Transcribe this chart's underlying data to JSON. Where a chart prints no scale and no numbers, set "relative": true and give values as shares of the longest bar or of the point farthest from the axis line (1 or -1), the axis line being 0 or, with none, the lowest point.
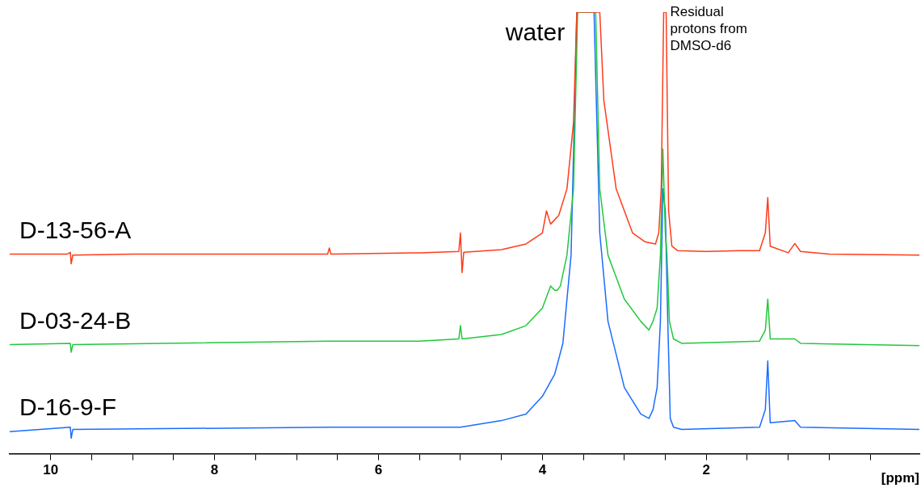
{
  "chart_data": {
    "type": "line",
    "relative": true,
    "xlabel": "[ppm]",
    "xlim": [
      10.5,
      -0.6
    ],
    "xticks": [
      10,
      {
        "value": 9.5,
        "label": null
      },
      {
        "value": 9,
        "label": null
      },
      {
        "value": 8.5,
        "label": null
      },
      8,
      {
        "value": 7.5,
        "label": null
      },
      {
        "value": 7,
        "label": null
      },
      {
        "value": 6.5,
        "label": null
      },
      6,
      {
        "value": 5.5,
        "label": null
      },
      {
        "value": 5,
        "label": null
      },
      {
        "value": 4.5,
        "label": null
      },
      4,
      {
        "value": 3.5,
        "label": null
      },
      {
        "value": 3,
        "label": null
      },
      {
        "value": 2.5,
        "label": null
      },
      2,
      {
        "value": 1.5,
        "label": null
      },
      {
        "value": 1,
        "label": null
      },
      {
        "value": 0.5,
        "label": null
      },
      {
        "value": 0,
        "label": null
      }
    ],
    "grid": false,
    "legend": false,
    "annotations": [
      {
        "text": "water",
        "x": 3.45,
        "y": 1
      },
      {
        "text": "Residual protons from DMSO-d6",
        "x": 2.5,
        "y": 1
      }
    ],
    "series": [
      {
        "name": "D-13-56-A",
        "color": "#ff3b1a",
        "x": [
          10.5,
          9.8,
          9.76,
          9.75,
          9.73,
          9,
          6.62,
          6.6,
          6.58,
          5.5,
          5.02,
          5.0,
          4.98,
          4.96,
          4.5,
          4.2,
          4.0,
          3.95,
          3.9,
          3.8,
          3.7,
          3.62,
          3.58,
          3.3,
          3.25,
          3.1,
          2.9,
          2.75,
          2.62,
          2.58,
          2.55,
          2.52,
          2.49,
          2.46,
          2.42,
          2.35,
          2.0,
          1.6,
          1.35,
          1.28,
          1.25,
          1.22,
          1.0,
          0.92,
          0.85,
          0.5,
          -0.6
        ],
        "values": [
          0.452,
          0.452,
          0.456,
          0.43,
          0.45,
          0.452,
          0.452,
          0.466,
          0.452,
          0.455,
          0.458,
          0.5,
          0.41,
          0.456,
          0.462,
          0.475,
          0.5,
          0.55,
          0.52,
          0.54,
          0.6,
          0.75,
          1,
          1,
          0.8,
          0.6,
          0.5,
          0.48,
          0.475,
          0.5,
          0.6,
          1,
          1,
          0.55,
          0.47,
          0.46,
          0.458,
          0.46,
          0.46,
          0.5,
          0.58,
          0.47,
          0.455,
          0.476,
          0.458,
          0.452,
          0.45
        ]
      },
      {
        "name": "D-03-24-B",
        "color": "#22c83c",
        "x": [
          10.5,
          9.76,
          9.75,
          9.73,
          6.6,
          5.5,
          5.02,
          5.0,
          4.98,
          4.5,
          4.2,
          4.0,
          3.9,
          3.85,
          3.82,
          3.78,
          3.7,
          3.62,
          3.57,
          3.35,
          3.3,
          3.2,
          3.0,
          2.8,
          2.7,
          2.65,
          2.6,
          2.56,
          2.53,
          2.5,
          2.48,
          2.45,
          2.4,
          2.3,
          1.35,
          1.28,
          1.25,
          1.22,
          0.92,
          0.85,
          -0.6
        ],
        "values": [
          0.247,
          0.25,
          0.23,
          0.247,
          0.255,
          0.255,
          0.26,
          0.29,
          0.26,
          0.27,
          0.29,
          0.33,
          0.38,
          0.37,
          0.37,
          0.38,
          0.45,
          0.6,
          1,
          1,
          0.6,
          0.45,
          0.35,
          0.3,
          0.28,
          0.3,
          0.33,
          0.45,
          0.69,
          0.5,
          0.45,
          0.3,
          0.26,
          0.25,
          0.255,
          0.28,
          0.35,
          0.26,
          0.26,
          0.25,
          0.245
        ]
      },
      {
        "name": "D-16-9-F",
        "color": "#1a6cff",
        "x": [
          10.5,
          9.76,
          9.75,
          9.73,
          6.6,
          5.0,
          4.5,
          4.2,
          4.0,
          3.85,
          3.75,
          3.65,
          3.58,
          3.37,
          3.3,
          3.2,
          3.0,
          2.8,
          2.7,
          2.65,
          2.6,
          2.56,
          2.53,
          2.5,
          2.47,
          2.44,
          2.4,
          2.3,
          1.35,
          1.28,
          1.25,
          1.22,
          0.92,
          0.85,
          -0.6
        ],
        "values": [
          0.05,
          0.06,
          0.035,
          0.055,
          0.06,
          0.06,
          0.075,
          0.09,
          0.13,
          0.18,
          0.25,
          0.45,
          1,
          1,
          0.5,
          0.3,
          0.15,
          0.09,
          0.08,
          0.1,
          0.15,
          0.3,
          0.6,
          0.55,
          0.3,
          0.08,
          0.06,
          0.055,
          0.06,
          0.1,
          0.21,
          0.07,
          0.075,
          0.06,
          0.055
        ]
      }
    ]
  }
}
